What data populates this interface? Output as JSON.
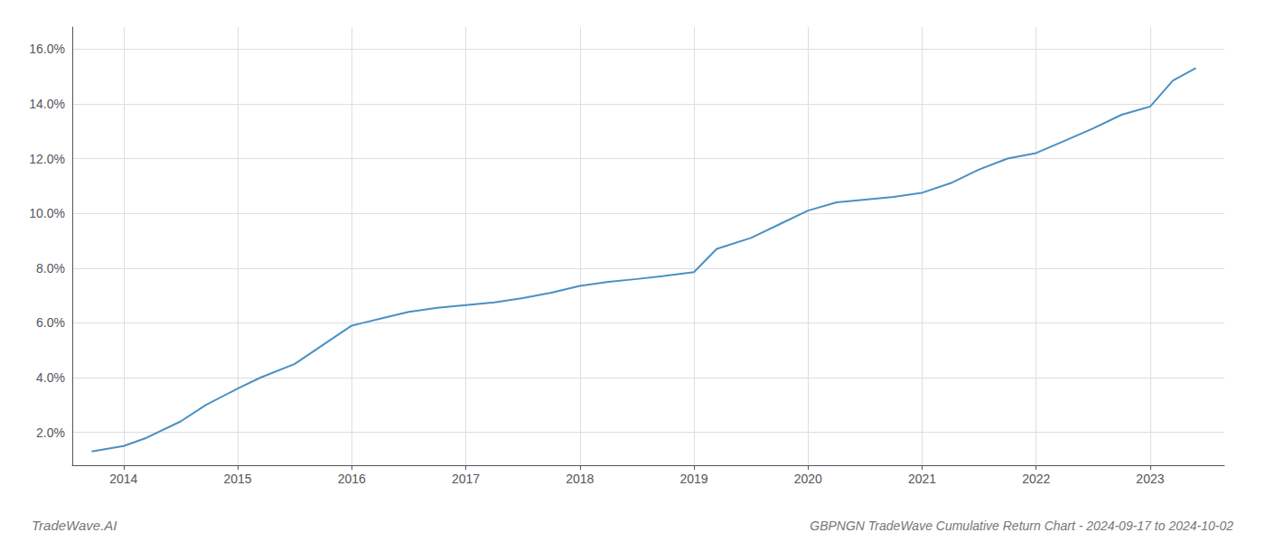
{
  "chart_data": {
    "type": "line",
    "title": "GBPNGN TradeWave Cumulative Return Chart - 2024-09-17 to 2024-10-02",
    "annotations": [
      "TradeWave.AI"
    ],
    "x": [
      2013.72,
      2014.0,
      2014.2,
      2014.5,
      2014.72,
      2015.0,
      2015.2,
      2015.5,
      2015.75,
      2016.0,
      2016.1,
      2016.3,
      2016.5,
      2016.75,
      2017.0,
      2017.25,
      2017.5,
      2017.75,
      2018.0,
      2018.25,
      2018.5,
      2018.72,
      2019.0,
      2019.2,
      2019.5,
      2019.75,
      2020.0,
      2020.25,
      2020.5,
      2020.75,
      2021.0,
      2021.25,
      2021.5,
      2021.75,
      2022.0,
      2022.25,
      2022.5,
      2022.75,
      2023.0,
      2023.2,
      2023.4
    ],
    "values": [
      1.3,
      1.5,
      1.8,
      2.4,
      3.0,
      3.6,
      4.0,
      4.5,
      5.2,
      5.9,
      6.0,
      6.2,
      6.4,
      6.55,
      6.65,
      6.75,
      6.9,
      7.1,
      7.35,
      7.5,
      7.6,
      7.7,
      7.85,
      8.7,
      9.1,
      9.6,
      10.1,
      10.4,
      10.5,
      10.6,
      10.75,
      11.1,
      11.6,
      12.0,
      12.2,
      12.65,
      13.1,
      13.6,
      13.9,
      14.85,
      15.3
    ],
    "color": "#4a90c4",
    "xlim": [
      2013.55,
      2023.65
    ],
    "xticks": [
      2014,
      2015,
      2016,
      2017,
      2018,
      2019,
      2020,
      2021,
      2022,
      2023
    ],
    "ylim": [
      0.8,
      16.8
    ],
    "yticks": [
      {
        "value": 2.0,
        "label": "2.0%"
      },
      {
        "value": 4.0,
        "label": "4.0%"
      },
      {
        "value": 6.0,
        "label": "6.0%"
      },
      {
        "value": 8.0,
        "label": "8.0%"
      },
      {
        "value": 10.0,
        "label": "10.0%"
      },
      {
        "value": 12.0,
        "label": "12.0%"
      },
      {
        "value": 14.0,
        "label": "14.0%"
      },
      {
        "value": 16.0,
        "label": "16.0%"
      }
    ],
    "grid": true
  }
}
